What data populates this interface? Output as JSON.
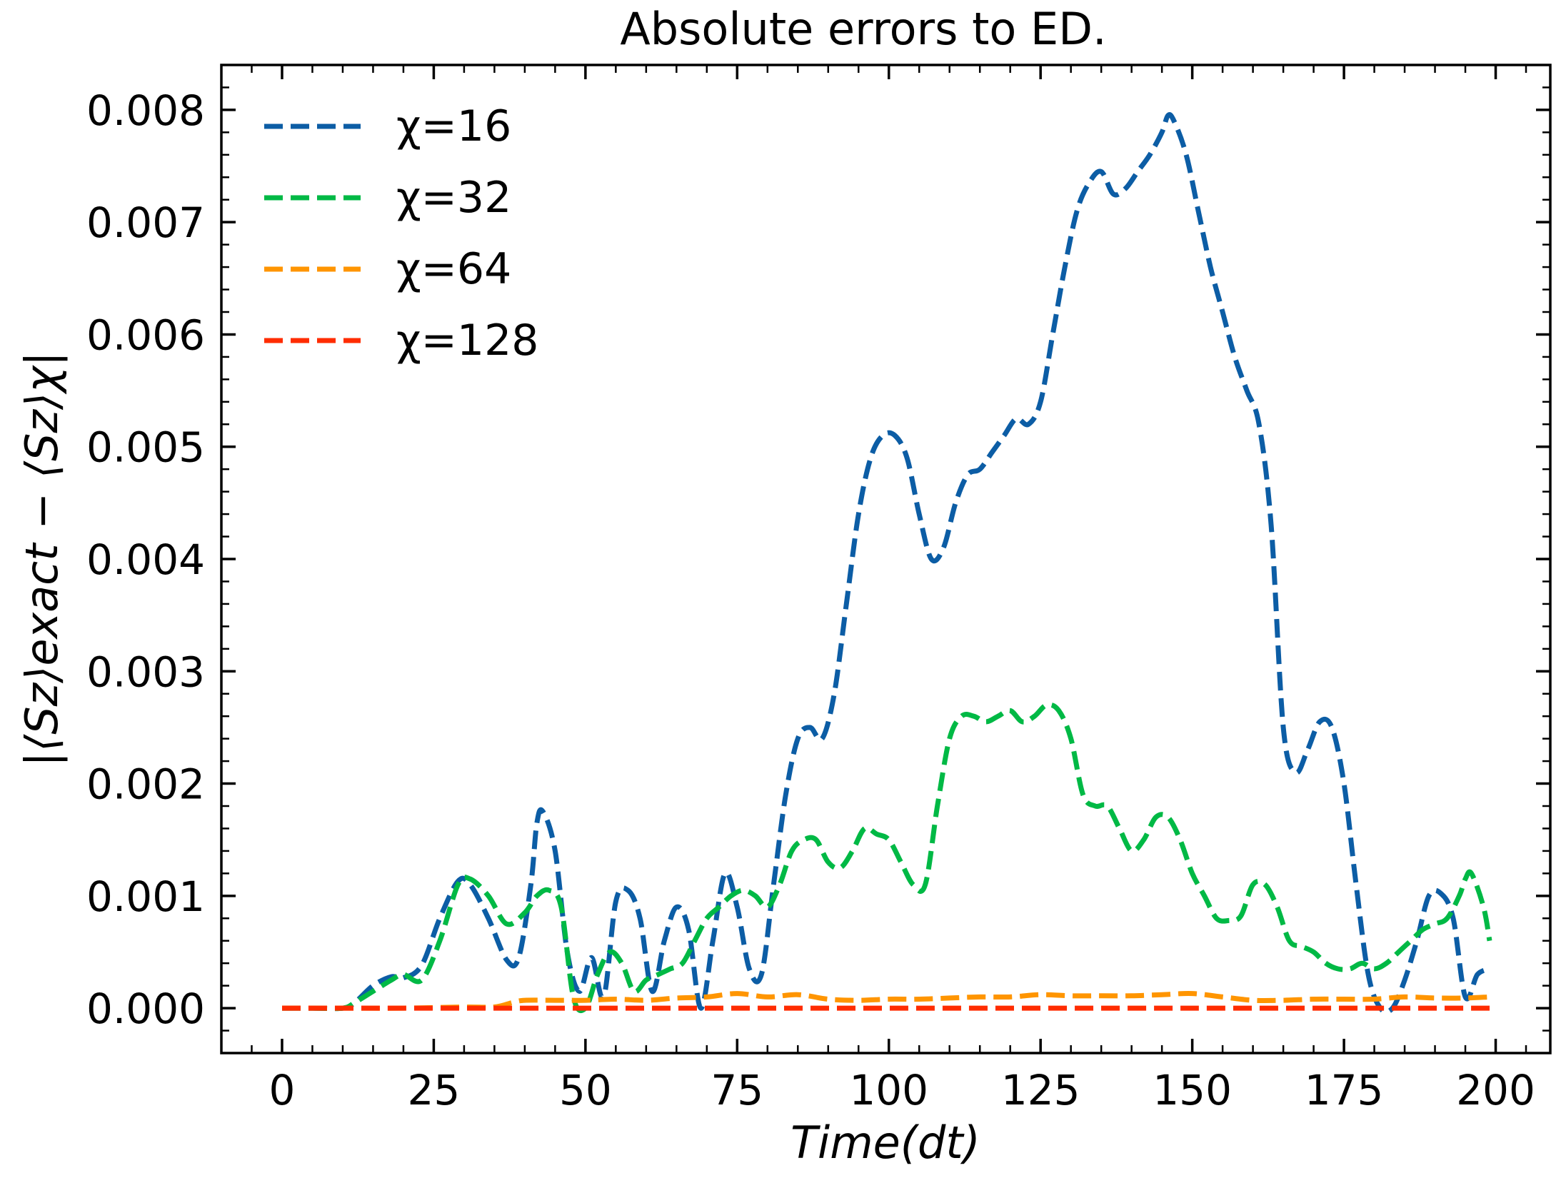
{
  "chart_data": {
    "type": "line",
    "title": "Absolute errors to ED.",
    "xlabel": "Time(dt)",
    "ylabel": "|⟨Sz⟩exact − ⟨Sz⟩χ|",
    "xlim": [
      -10,
      209
    ],
    "ylim": [
      -0.0004,
      0.0084
    ],
    "xticks": [
      0,
      25,
      50,
      75,
      100,
      125,
      150,
      175,
      200
    ],
    "xtick_labels": [
      "0",
      "25",
      "50",
      "75",
      "100",
      "125",
      "150",
      "175",
      "200"
    ],
    "yticks": [
      0.0,
      0.001,
      0.002,
      0.003,
      0.004,
      0.005,
      0.006,
      0.007,
      0.008
    ],
    "ytick_labels": [
      "0.000",
      "0.001",
      "0.002",
      "0.003",
      "0.004",
      "0.005",
      "0.006",
      "0.007",
      "0.008"
    ],
    "legend_position": "top-left",
    "series": [
      {
        "name": "χ=16",
        "color": "#0C5DA5",
        "x": [
          0,
          5,
          10,
          12,
          15,
          18,
          20,
          23,
          26,
          29,
          31,
          34,
          37,
          39,
          41,
          42,
          43,
          45,
          47,
          49,
          51,
          53,
          55,
          57,
          59,
          61,
          63,
          65,
          67,
          69,
          71,
          73,
          75,
          77,
          79,
          81,
          83,
          85,
          87,
          89,
          91,
          93,
          95,
          97,
          99,
          101,
          103,
          105,
          107,
          109,
          111,
          113,
          115,
          117,
          119,
          121,
          123,
          125,
          127,
          129,
          131,
          133,
          135,
          137,
          139,
          141,
          143,
          145,
          146,
          147,
          149,
          151,
          153,
          155,
          157,
          159,
          161,
          163,
          165,
          167,
          169,
          171,
          173,
          175,
          177,
          179,
          181,
          183,
          185,
          187,
          189,
          191,
          193,
          195,
          197,
          199
        ],
        "values": [
          0.0,
          0.0,
          0.0,
          5e-05,
          0.0002,
          0.00028,
          0.00027,
          0.00038,
          0.0008,
          0.00113,
          0.0011,
          0.0008,
          0.00043,
          0.00045,
          0.0011,
          0.00165,
          0.00175,
          0.0014,
          0.0005,
          0.00015,
          0.00045,
          0.0001,
          0.00095,
          0.00105,
          0.0008,
          0.00015,
          0.0006,
          0.0009,
          0.0007,
          0.0,
          0.0006,
          0.0012,
          0.0009,
          0.00035,
          0.0003,
          0.0011,
          0.0019,
          0.0024,
          0.0025,
          0.0024,
          0.0028,
          0.0036,
          0.0044,
          0.0049,
          0.0051,
          0.0051,
          0.0049,
          0.0044,
          0.004,
          0.0041,
          0.0045,
          0.00475,
          0.0048,
          0.00495,
          0.0051,
          0.00525,
          0.0052,
          0.0054,
          0.006,
          0.0066,
          0.0071,
          0.00735,
          0.00745,
          0.00725,
          0.0073,
          0.00745,
          0.0076,
          0.0078,
          0.00795,
          0.0079,
          0.0076,
          0.0071,
          0.0066,
          0.0062,
          0.0058,
          0.0055,
          0.0052,
          0.0043,
          0.0025,
          0.0021,
          0.0023,
          0.00255,
          0.0025,
          0.002,
          0.0011,
          0.0003,
          0.0,
          0.0,
          0.00025,
          0.0006,
          0.001,
          0.00102,
          0.0008,
          0.0001,
          0.0003,
          0.00035
        ]
      },
      {
        "name": "χ=32",
        "color": "#00B945",
        "x": [
          0,
          5,
          10,
          12,
          15,
          18,
          20,
          23,
          26,
          29,
          31,
          34,
          37,
          40,
          42,
          44,
          46,
          48,
          50,
          52,
          54,
          56,
          58,
          60,
          62,
          64,
          66,
          68,
          70,
          72,
          74,
          76,
          78,
          80,
          82,
          84,
          86,
          88,
          90,
          92,
          94,
          96,
          98,
          100,
          102,
          104,
          106,
          108,
          110,
          112,
          114,
          116,
          118,
          120,
          122,
          124,
          126,
          128,
          130,
          132,
          134,
          136,
          138,
          140,
          142,
          144,
          146,
          148,
          150,
          152,
          154,
          156,
          158,
          160,
          162,
          164,
          166,
          168,
          170,
          172,
          174,
          176,
          178,
          180,
          182,
          184,
          186,
          188,
          190,
          192,
          194,
          195,
          196,
          198,
          199
        ],
        "values": [
          0.0,
          0.0,
          0.0,
          5e-05,
          0.00015,
          0.00025,
          0.0003,
          0.00025,
          0.0006,
          0.0011,
          0.00115,
          0.001,
          0.00075,
          0.00085,
          0.001,
          0.00105,
          0.0009,
          0.0001,
          0.0,
          0.0003,
          0.0005,
          0.0004,
          0.00015,
          0.00025,
          0.0003,
          0.00035,
          0.0004,
          0.0006,
          0.0008,
          0.0009,
          0.001,
          0.00105,
          0.001,
          0.0009,
          0.0011,
          0.0014,
          0.0015,
          0.0015,
          0.0013,
          0.00125,
          0.0014,
          0.0016,
          0.00155,
          0.0015,
          0.0013,
          0.0011,
          0.0011,
          0.0018,
          0.0024,
          0.0026,
          0.0026,
          0.00255,
          0.0026,
          0.00265,
          0.00255,
          0.0026,
          0.0027,
          0.00265,
          0.0024,
          0.0019,
          0.0018,
          0.0018,
          0.0016,
          0.0014,
          0.0015,
          0.0017,
          0.0017,
          0.0015,
          0.0012,
          0.001,
          0.0008,
          0.00078,
          0.00082,
          0.0011,
          0.0011,
          0.0009,
          0.0006,
          0.00055,
          0.0005,
          0.0004,
          0.00035,
          0.00035,
          0.0004,
          0.00035,
          0.0004,
          0.0005,
          0.0006,
          0.0007,
          0.00075,
          0.0008,
          0.001,
          0.00115,
          0.0012,
          0.0009,
          0.0006
        ]
      },
      {
        "name": "χ=64",
        "color": "#FF9500",
        "x": [
          0,
          10,
          20,
          30,
          35,
          38,
          40,
          45,
          50,
          55,
          60,
          65,
          70,
          75,
          80,
          85,
          90,
          95,
          100,
          105,
          110,
          115,
          120,
          125,
          130,
          135,
          140,
          145,
          150,
          155,
          160,
          165,
          170,
          175,
          180,
          185,
          190,
          195,
          199
        ],
        "values": [
          0.0,
          0.0,
          0.0,
          1e-05,
          1e-05,
          5e-05,
          7e-05,
          7e-05,
          7e-05,
          8e-05,
          7e-05,
          9e-05,
          0.0001,
          0.00013,
          0.0001,
          0.00012,
          8e-05,
          7e-05,
          8e-05,
          8e-05,
          9e-05,
          0.0001,
          0.0001,
          0.00012,
          0.00011,
          0.00011,
          0.00011,
          0.00012,
          0.00013,
          0.0001,
          7e-05,
          7e-05,
          8e-05,
          8e-05,
          8e-05,
          0.0001,
          9e-05,
          9e-05,
          0.0001
        ]
      },
      {
        "name": "χ=128",
        "color": "#FF2C00",
        "x": [
          0,
          50,
          100,
          150,
          199
        ],
        "values": [
          0.0,
          0.0,
          0.0,
          0.0,
          0.0
        ]
      }
    ]
  }
}
